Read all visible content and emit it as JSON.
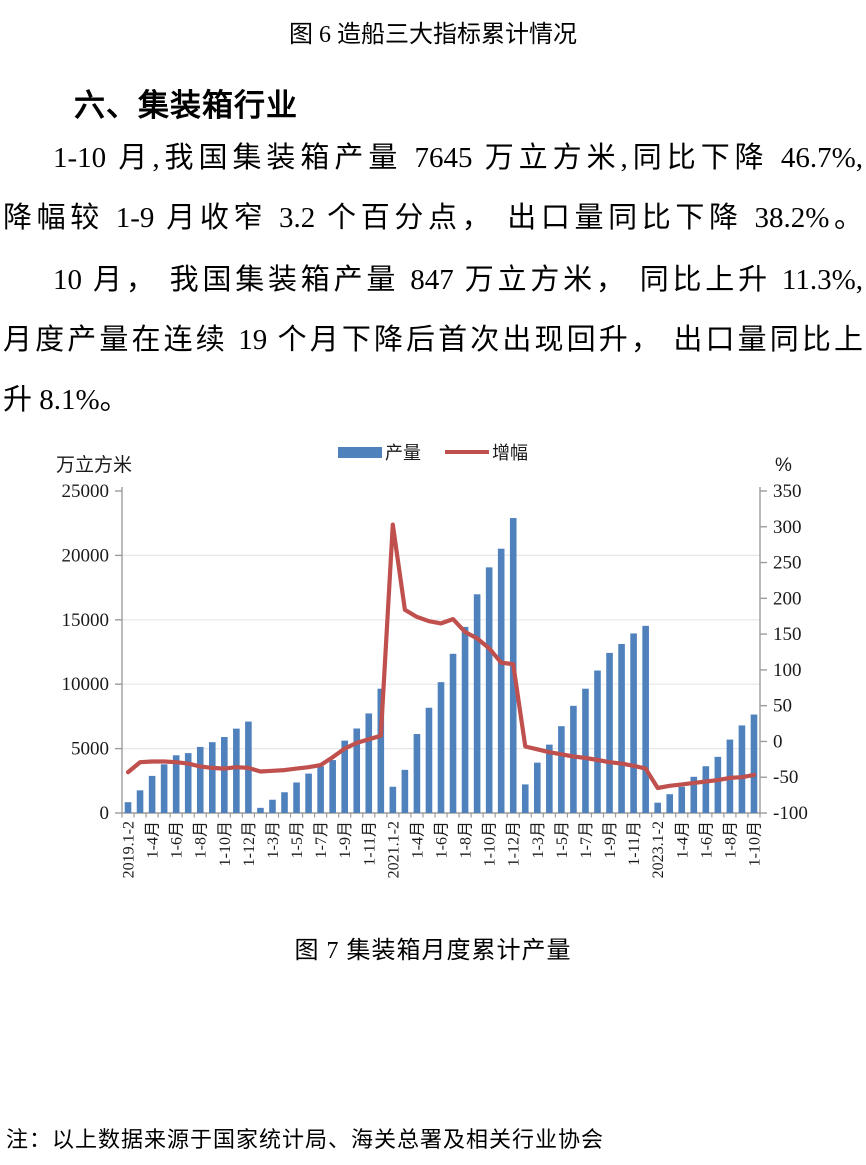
{
  "page": {
    "fig6_caption": "图 6 造船三大指标累计情况",
    "section_heading": "六、集装箱行业",
    "paragraph1_lines": [
      "1-10 月,我国集装箱产量 7645 万立方米,同比下降 46.7%,",
      "降幅较 1-9 月收窄 3.2 个百分点， 出口量同比下降 38.2%。"
    ],
    "paragraph2_lines": [
      "10 月， 我国集装箱产量 847 万立方米， 同比上升 11.3%,",
      "月度产量在连续 19 个月下降后首次出现回升， 出口量同比上",
      "升 8.1%。"
    ],
    "fig7_caption": "图 7 集装箱月度累计产量",
    "footnote": "注：以上数据来源于国家统计局、海关总署及相关行业协会"
  },
  "chart_data": {
    "type": "bar+line dual-axis combo",
    "title": "图 7 集装箱月度累计产量",
    "legend_position": "top-center",
    "grid": true,
    "grid_color": "#e7e7e7",
    "axis_color": "#9c9c9c",
    "left_axis": {
      "title": "万立方米",
      "min": 0,
      "max": 25000,
      "step": 5000,
      "ticks": [
        0,
        5000,
        10000,
        15000,
        20000,
        25000
      ]
    },
    "right_axis": {
      "title": "%",
      "min": -100,
      "max": 350,
      "step": 50,
      "ticks": [
        -100,
        -50,
        0,
        50,
        100,
        150,
        200,
        250,
        300,
        350
      ]
    },
    "x_tick_labels": [
      "2019.1-2",
      "1-4月",
      "1-6月",
      "1-8月",
      "1-10月",
      "1-12月",
      "1-3月",
      "1-5月",
      "1-7月",
      "1-9月",
      "1-11月",
      "2021.1-2",
      "1-4月",
      "1-6月",
      "1-8月",
      "1-10月",
      "1-12月",
      "1-3月",
      "1-5月",
      "1-7月",
      "1-9月",
      "1-11月",
      "2023.1-2",
      "1-4月",
      "1-6月",
      "1-8月",
      "1-10月"
    ],
    "x_tick_note": "labels mark every second bar, cumulative periods per year 1-2月..1-12月 for 2019-2022 and 1-2月..1-10月 for 2023",
    "series": [
      {
        "name": "产量",
        "type": "bar",
        "axis": "left",
        "color": "#4f81bd",
        "values": [
          840,
          1760,
          2880,
          3780,
          4480,
          4650,
          5130,
          5500,
          5900,
          6550,
          7100,
          400,
          1030,
          1610,
          2370,
          3060,
          3630,
          4110,
          5620,
          6560,
          7730,
          9650,
          2040,
          3350,
          6130,
          8170,
          10160,
          12360,
          14450,
          16980,
          19070,
          20520,
          22900,
          2220,
          3910,
          5310,
          6740,
          8320,
          9650,
          11060,
          12430,
          13120,
          13940,
          14530,
          800,
          1460,
          2040,
          2810,
          3630,
          4360,
          5700,
          6800,
          7645
        ]
      },
      {
        "name": "增幅",
        "type": "line",
        "axis": "right",
        "color": "#c0504d",
        "values": [
          -43,
          -29,
          -28,
          -28,
          -29,
          -31,
          -35,
          -37,
          -38,
          -36,
          -37,
          -42,
          -41,
          -40,
          -38,
          -36,
          -33,
          -22,
          -10,
          -2,
          3,
          8,
          303,
          184,
          174,
          168,
          165,
          171,
          153,
          144,
          130,
          110,
          108,
          -7,
          -11,
          -15,
          -18,
          -21,
          -23,
          -26,
          -29,
          -31,
          -34,
          -38,
          -65,
          -62,
          -60,
          -58,
          -56,
          -54,
          -51,
          -49.9,
          -46.7
        ]
      }
    ]
  }
}
